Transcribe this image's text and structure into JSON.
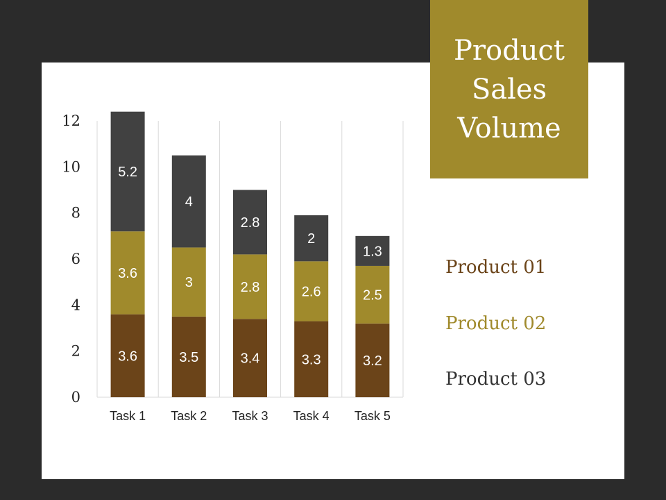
{
  "title": {
    "lines": [
      "Product",
      "Sales",
      "Volume"
    ]
  },
  "legend": {
    "items": [
      {
        "label": "Product 01",
        "color": "#6b4419"
      },
      {
        "label": "Product 02",
        "color": "#a08a2c"
      },
      {
        "label": "Product 03",
        "color": "#333333"
      }
    ]
  },
  "chart_data": {
    "type": "bar",
    "stacked": true,
    "title": "Product Sales Volume",
    "xlabel": "",
    "ylabel": "",
    "categories": [
      "Task 1",
      "Task 2",
      "Task 3",
      "Task 4",
      "Task 5"
    ],
    "ylim": [
      0,
      12
    ],
    "yticks": [
      0,
      2,
      4,
      6,
      8,
      10,
      12
    ],
    "grid": "vertical",
    "legend": "right",
    "series": [
      {
        "name": "Product 01",
        "color": "#6b4419",
        "values": [
          3.6,
          3.5,
          3.4,
          3.3,
          3.2
        ]
      },
      {
        "name": "Product 02",
        "color": "#a08a2c",
        "values": [
          3.6,
          3,
          2.8,
          2.6,
          2.5
        ]
      },
      {
        "name": "Product 03",
        "color": "#414141",
        "values": [
          5.2,
          4,
          2.8,
          2,
          1.3
        ]
      }
    ]
  }
}
